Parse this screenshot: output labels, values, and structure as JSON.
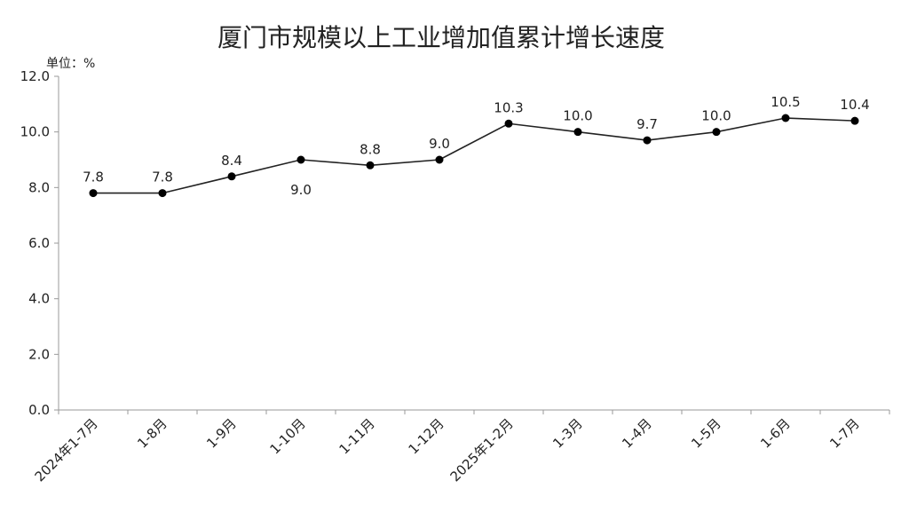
{
  "chart_data": {
    "type": "line",
    "title": "厦门市规模以上工业增加值累计增长速度",
    "unit_label": "单位：%",
    "xlabel": "",
    "ylabel": "",
    "categories": [
      "2024年1-7月",
      "1-8月",
      "1-9月",
      "1-10月",
      "1-11月",
      "1-12月",
      "2025年1-2月",
      "1-3月",
      "1-4月",
      "1-5月",
      "1-6月",
      "1-7月"
    ],
    "values": [
      7.8,
      7.8,
      8.4,
      9.0,
      8.8,
      9.0,
      10.3,
      10.0,
      9.7,
      10.0,
      10.5,
      10.4
    ],
    "data_labels": [
      "7.8",
      "7.8",
      "8.4",
      "9.0",
      "8.8",
      "9.0",
      "10.3",
      "10.0",
      "9.7",
      "10.0",
      "10.5",
      "10.4"
    ],
    "label_position": [
      "above",
      "above",
      "above",
      "below",
      "above",
      "above",
      "above",
      "above",
      "above",
      "above",
      "above",
      "above"
    ],
    "ylim": [
      0,
      12
    ],
    "yticks": [
      0,
      2,
      4,
      6,
      8,
      10,
      12
    ],
    "ytick_labels": [
      "0.0",
      "2.0",
      "4.0",
      "6.0",
      "8.0",
      "10.0",
      "12.0"
    ],
    "grid": false,
    "legend": "none",
    "colors": {
      "line": "#222222",
      "marker": "#000000",
      "axis": "#999999",
      "text": "#222222"
    }
  }
}
